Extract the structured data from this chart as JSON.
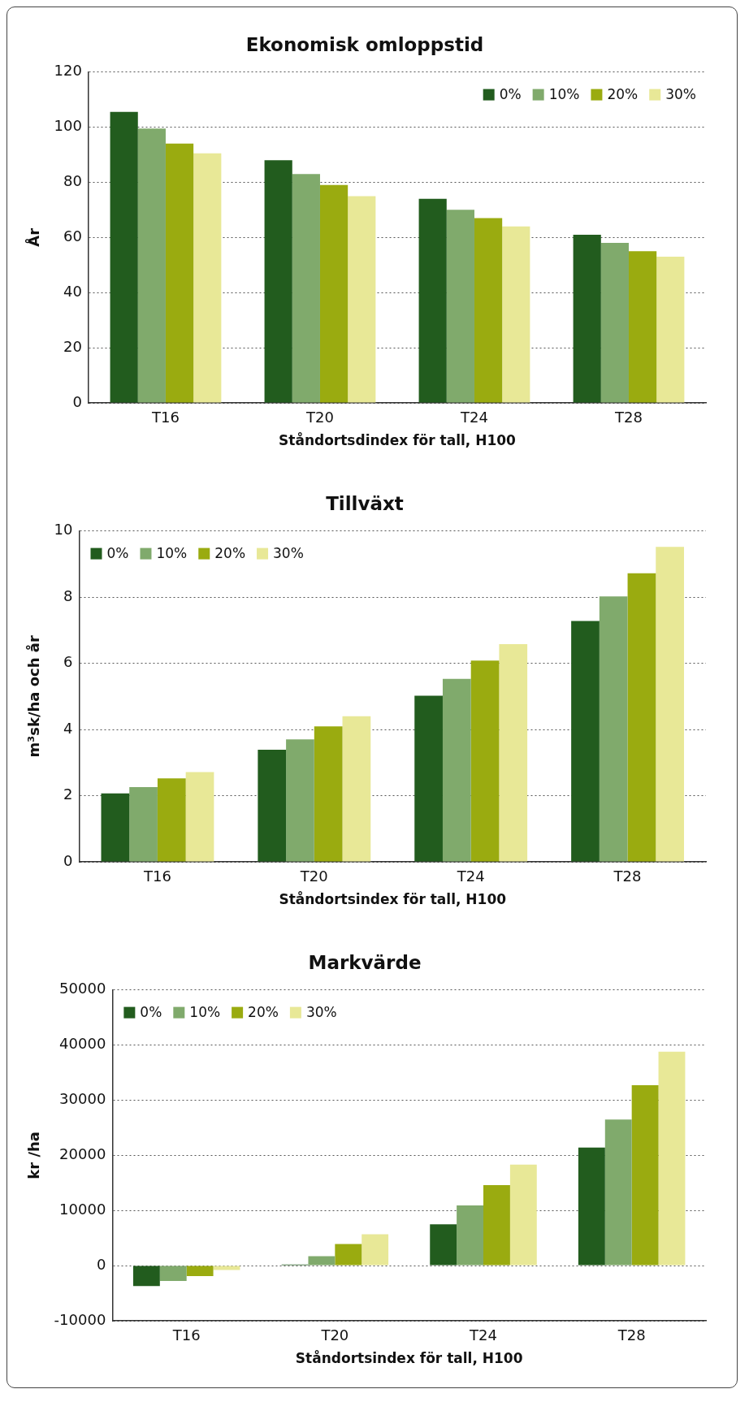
{
  "chart_data": [
    {
      "type": "bar",
      "title": "Ekonomisk omloppstid",
      "xlabel": "Ståndortsdindex för tall, H100",
      "ylabel": "År",
      "categories": [
        "T16",
        "T20",
        "T24",
        "T28"
      ],
      "series": [
        {
          "name": "0%",
          "color": "#225c1e",
          "values": [
            105.5,
            88,
            74,
            61
          ]
        },
        {
          "name": "10%",
          "color": "#80aa6c",
          "values": [
            99.5,
            83,
            70,
            58
          ]
        },
        {
          "name": "20%",
          "color": "#9aab10",
          "values": [
            94,
            79,
            67,
            55
          ]
        },
        {
          "name": "30%",
          "color": "#e8e897",
          "values": [
            90.5,
            75,
            64,
            53
          ]
        }
      ],
      "ylim": [
        0,
        120
      ],
      "yticks": [
        0,
        20,
        40,
        60,
        80,
        100,
        120
      ],
      "grid": "y",
      "legend": "top right"
    },
    {
      "type": "bar",
      "title": "Tillväxt",
      "xlabel": "Ståndortsindex för tall, H100",
      "ylabel": "m³sk/ha och år",
      "categories": [
        "T16",
        "T20",
        "T24",
        "T28"
      ],
      "series": [
        {
          "name": "0%",
          "color": "#225c1e",
          "values": [
            2.07,
            3.39,
            5.02,
            7.28
          ]
        },
        {
          "name": "10%",
          "color": "#80aa6c",
          "values": [
            2.26,
            3.7,
            5.53,
            8.02
          ]
        },
        {
          "name": "20%",
          "color": "#9aab10",
          "values": [
            2.52,
            4.09,
            6.08,
            8.72
          ]
        },
        {
          "name": "30%",
          "color": "#e8e897",
          "values": [
            2.71,
            4.4,
            6.58,
            9.52
          ]
        }
      ],
      "ylim": [
        0,
        10
      ],
      "yticks": [
        0,
        2,
        4,
        6,
        8,
        10
      ],
      "grid": "y",
      "legend": "top left"
    },
    {
      "type": "bar",
      "title": "Markvärde",
      "xlabel": "Ståndortsindex för tall, H100",
      "ylabel": "kr /ha",
      "categories": [
        "T16",
        "T20",
        "T24",
        "T28"
      ],
      "series": [
        {
          "name": "0%",
          "color": "#225c1e",
          "values": [
            -3700,
            200,
            7500,
            21400
          ]
        },
        {
          "name": "10%",
          "color": "#80aa6c",
          "values": [
            -2800,
            1700,
            10900,
            26500
          ]
        },
        {
          "name": "20%",
          "color": "#9aab10",
          "values": [
            -1900,
            3900,
            14600,
            32700
          ]
        },
        {
          "name": "30%",
          "color": "#e8e897",
          "values": [
            -800,
            5700,
            18300,
            38800
          ]
        }
      ],
      "ylim": [
        -10000,
        50000
      ],
      "yticks": [
        -10000,
        0,
        10000,
        20000,
        30000,
        40000,
        50000
      ],
      "grid": "y",
      "legend": "top left"
    }
  ]
}
